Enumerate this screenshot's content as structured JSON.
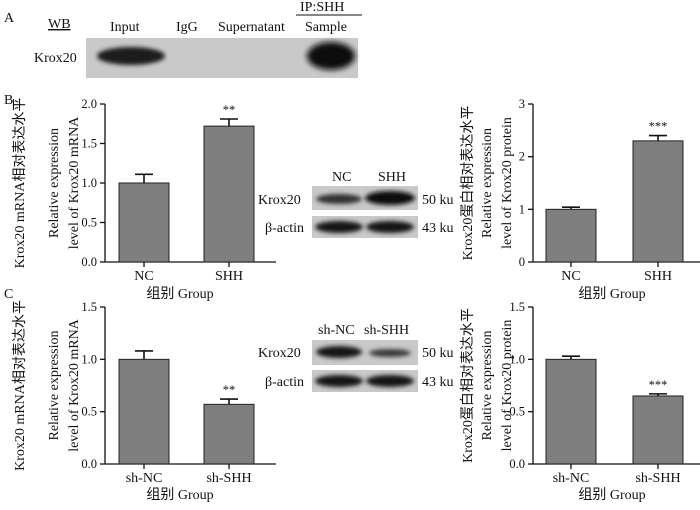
{
  "panel_labels": {
    "a": "A",
    "b": "B",
    "c": "C"
  },
  "panel_a": {
    "wb": "WB",
    "ip": "IP:SHH",
    "lanes": [
      "Input",
      "IgG",
      "Supernatant",
      "Sample"
    ],
    "row_label": "Krox20"
  },
  "blot_b": {
    "lanes": [
      "NC",
      "SHH"
    ],
    "rows": [
      "Krox20",
      "β-actin"
    ],
    "sizes": [
      "50 ku",
      "43 ku"
    ]
  },
  "blot_c": {
    "lanes": [
      "sh-NC",
      "sh-SHH"
    ],
    "rows": [
      "Krox20",
      "β-actin"
    ],
    "sizes": [
      "50 ku",
      "43 ku"
    ]
  },
  "chart_data": [
    {
      "id": "b-left",
      "type": "bar",
      "categories": [
        "NC",
        "SHH"
      ],
      "values": [
        1.0,
        1.72
      ],
      "errors": [
        0.11,
        0.09
      ],
      "significance": [
        "",
        "**"
      ],
      "ylim": [
        0,
        2.0
      ],
      "yticks": [
        "0.0",
        "0.5",
        "1.0",
        "1.5",
        "2.0"
      ],
      "ylabel_cn": "Krox20 mRNA相对表达水平",
      "ylabel_en1": "Relative expression",
      "ylabel_en2": "level of Krox20 mRNA",
      "xlabel": "组别 Group"
    },
    {
      "id": "b-right",
      "type": "bar",
      "categories": [
        "NC",
        "SHH"
      ],
      "values": [
        1.0,
        2.3
      ],
      "errors": [
        0.04,
        0.1
      ],
      "significance": [
        "",
        "***"
      ],
      "ylim": [
        0,
        3
      ],
      "yticks": [
        "0",
        "1",
        "2",
        "3"
      ],
      "ylabel_cn": "Krox20蛋白相对表达水平",
      "ylabel_en1": "Relative expression",
      "ylabel_en2": "level of Krox20 protein",
      "xlabel": "组别 Group"
    },
    {
      "id": "c-left",
      "type": "bar",
      "categories": [
        "sh-NC",
        "sh-SHH"
      ],
      "values": [
        1.0,
        0.57
      ],
      "errors": [
        0.08,
        0.05
      ],
      "significance": [
        "",
        "**"
      ],
      "ylim": [
        0,
        1.5
      ],
      "yticks": [
        "0.0",
        "0.5",
        "1.0",
        "1.5"
      ],
      "ylabel_cn": "Krox20 mRNA相对表达水平",
      "ylabel_en1": "Relative expression",
      "ylabel_en2": "level of Krox20 mRNA",
      "xlabel": "组别 Group"
    },
    {
      "id": "c-right",
      "type": "bar",
      "categories": [
        "sh-NC",
        "sh-SHH"
      ],
      "values": [
        1.0,
        0.65
      ],
      "errors": [
        0.03,
        0.02
      ],
      "significance": [
        "",
        "***"
      ],
      "ylim": [
        0,
        1.5
      ],
      "yticks": [
        "0.0",
        "0.5",
        "1.0",
        "1.5"
      ],
      "ylabel_cn": "Krox20蛋白相对表达水平",
      "ylabel_en1": "Relative expression",
      "ylabel_en2": "level of Krox20 protein",
      "xlabel": "组别 Group"
    }
  ]
}
